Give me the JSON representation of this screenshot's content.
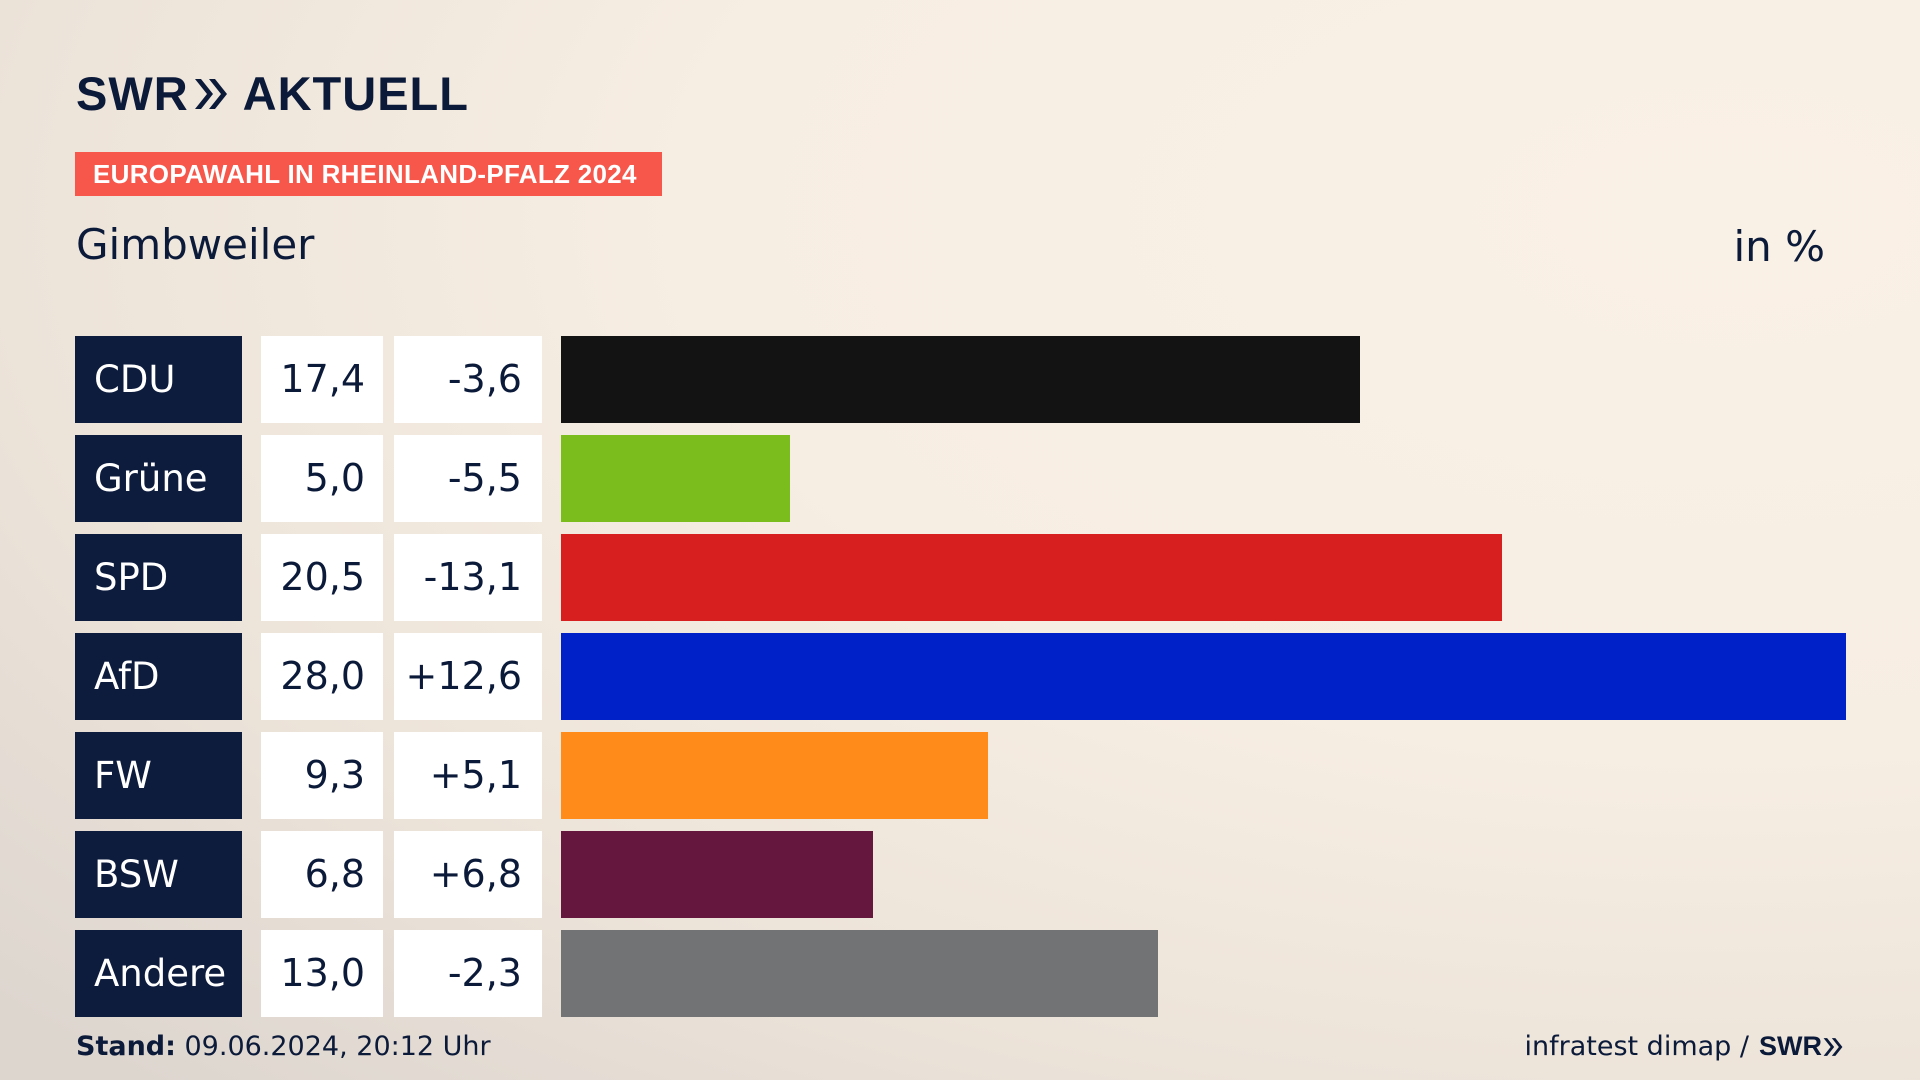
{
  "header": {
    "logo_brand": "SWR",
    "logo_suffix": "AKTUELL",
    "badge": "EUROPAWAHL IN RHEINLAND-PFALZ 2024",
    "place": "Gimbweiler",
    "unit": "in %"
  },
  "footer": {
    "stand_label": "Stand:",
    "stand_value": " 09.06.2024, 20:12 Uhr",
    "source": "infratest dimap /",
    "source_brand": "SWR"
  },
  "chart_data": {
    "type": "bar",
    "orientation": "horizontal",
    "title": "Gimbweiler",
    "unit": "in %",
    "categories": [
      "CDU",
      "Grüne",
      "SPD",
      "AfD",
      "FW",
      "BSW",
      "Andere"
    ],
    "values": [
      17.4,
      5.0,
      20.5,
      28.0,
      9.3,
      6.8,
      13.0
    ],
    "value_labels": [
      "17,4",
      "5,0",
      "20,5",
      "28,0",
      "9,3",
      "6,8",
      "13,0"
    ],
    "changes": [
      -3.6,
      -5.5,
      -13.1,
      12.6,
      5.1,
      6.8,
      -2.3
    ],
    "change_labels": [
      "-3,6",
      "-5,5",
      "-13,1",
      "+12,6",
      "+5,1",
      "+6,8",
      "-2,3"
    ],
    "colors": [
      "#131313",
      "#7bbd1c",
      "#d81f1f",
      "#0021c7",
      "#ff8c1a",
      "#66173e",
      "#727374"
    ],
    "xlim": [
      0,
      28.0
    ]
  }
}
